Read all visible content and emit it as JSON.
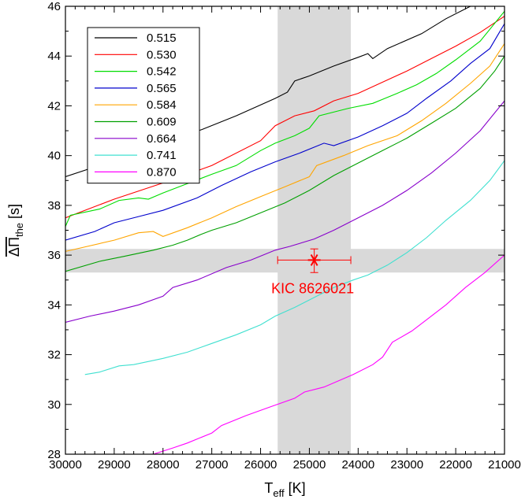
{
  "chart_data": {
    "type": "line",
    "xlabel": {
      "main": "T",
      "sub": "eff",
      "unit": " [K]"
    },
    "ylabel": {
      "main": "ΔΠ",
      "sub": "the",
      "unit": " [s]"
    },
    "xlim": [
      30000,
      21000
    ],
    "ylim": [
      28,
      46
    ],
    "x_reversed": true,
    "x_ticks": [
      30000,
      29000,
      28000,
      27000,
      26000,
      25000,
      24000,
      23000,
      22000,
      21000
    ],
    "y_ticks": [
      28,
      30,
      32,
      34,
      36,
      38,
      40,
      42,
      44,
      46
    ],
    "legend_position": "top-left",
    "bands": {
      "vertical": {
        "x_range": [
          25650,
          24150
        ],
        "color": "#d9d9d9"
      },
      "horizontal": {
        "y_range": [
          35.3,
          36.25
        ],
        "color": "#d9d9d9"
      }
    },
    "annotation": {
      "label": "KIC 8626021",
      "x": 24900,
      "y": 35.8,
      "x_err": [
        25650,
        24150
      ],
      "y_err": [
        35.3,
        36.25
      ],
      "color": "#ff0000"
    },
    "series": [
      {
        "name": "0.515",
        "color": "#000000",
        "points": [
          [
            30000,
            39.15
          ],
          [
            29000,
            39.8
          ],
          [
            28000,
            40.5
          ],
          [
            27200,
            41.05
          ],
          [
            26500,
            41.6
          ],
          [
            25700,
            42.3
          ],
          [
            25450,
            42.55
          ],
          [
            25300,
            43.0
          ],
          [
            25000,
            43.2
          ],
          [
            24500,
            43.6
          ],
          [
            24000,
            43.95
          ],
          [
            23800,
            44.1
          ],
          [
            23700,
            43.9
          ],
          [
            23400,
            44.3
          ],
          [
            22700,
            44.9
          ],
          [
            22200,
            45.5
          ],
          [
            21700,
            46.0
          ]
        ]
      },
      {
        "name": "0.530",
        "color": "#ff0000",
        "points": [
          [
            30000,
            37.5
          ],
          [
            29000,
            38.25
          ],
          [
            28000,
            38.9
          ],
          [
            27000,
            39.6
          ],
          [
            26000,
            40.6
          ],
          [
            25700,
            41.2
          ],
          [
            25300,
            41.6
          ],
          [
            24900,
            41.8
          ],
          [
            24500,
            42.2
          ],
          [
            24000,
            42.5
          ],
          [
            23500,
            42.95
          ],
          [
            23000,
            43.4
          ],
          [
            22500,
            43.9
          ],
          [
            22000,
            44.4
          ],
          [
            21500,
            44.95
          ],
          [
            21000,
            45.6
          ]
        ]
      },
      {
        "name": "0.542",
        "color": "#00dd00",
        "points": [
          [
            30000,
            37.15
          ],
          [
            29900,
            37.6
          ],
          [
            29300,
            37.85
          ],
          [
            28900,
            38.2
          ],
          [
            28500,
            38.3
          ],
          [
            28300,
            38.25
          ],
          [
            28000,
            38.5
          ],
          [
            27600,
            38.8
          ],
          [
            27000,
            39.25
          ],
          [
            26500,
            39.6
          ],
          [
            26000,
            40.2
          ],
          [
            25700,
            40.5
          ],
          [
            25300,
            40.8
          ],
          [
            25000,
            41.1
          ],
          [
            24800,
            41.6
          ],
          [
            24200,
            41.9
          ],
          [
            23700,
            42.1
          ],
          [
            23200,
            42.5
          ],
          [
            22800,
            42.85
          ],
          [
            22400,
            43.3
          ],
          [
            22000,
            43.85
          ],
          [
            21500,
            44.6
          ],
          [
            21000,
            45.8
          ]
        ]
      },
      {
        "name": "0.565",
        "color": "#0000cc",
        "points": [
          [
            30000,
            36.6
          ],
          [
            29400,
            36.95
          ],
          [
            29000,
            37.3
          ],
          [
            28500,
            37.55
          ],
          [
            28000,
            37.8
          ],
          [
            27300,
            38.3
          ],
          [
            26800,
            38.8
          ],
          [
            26200,
            39.35
          ],
          [
            25700,
            39.75
          ],
          [
            25200,
            40.1
          ],
          [
            24700,
            40.5
          ],
          [
            24500,
            40.4
          ],
          [
            24000,
            40.75
          ],
          [
            23500,
            41.2
          ],
          [
            23000,
            41.7
          ],
          [
            22600,
            42.3
          ],
          [
            22100,
            43.0
          ],
          [
            21700,
            43.7
          ],
          [
            21300,
            44.3
          ],
          [
            21000,
            45.3
          ]
        ]
      },
      {
        "name": "0.584",
        "color": "#ffa500",
        "points": [
          [
            30000,
            36.15
          ],
          [
            29000,
            36.6
          ],
          [
            28500,
            36.9
          ],
          [
            28200,
            36.95
          ],
          [
            28000,
            36.75
          ],
          [
            27500,
            37.1
          ],
          [
            27000,
            37.5
          ],
          [
            26500,
            37.95
          ],
          [
            26000,
            38.35
          ],
          [
            25500,
            38.75
          ],
          [
            25000,
            39.15
          ],
          [
            24850,
            39.6
          ],
          [
            24300,
            40.0
          ],
          [
            23800,
            40.4
          ],
          [
            23200,
            40.8
          ],
          [
            22700,
            41.4
          ],
          [
            22200,
            42.1
          ],
          [
            21700,
            42.9
          ],
          [
            21300,
            43.6
          ],
          [
            21000,
            44.5
          ]
        ]
      },
      {
        "name": "0.609",
        "color": "#00a000",
        "points": [
          [
            30000,
            35.35
          ],
          [
            29300,
            35.75
          ],
          [
            28800,
            35.95
          ],
          [
            28200,
            36.2
          ],
          [
            27800,
            36.4
          ],
          [
            27500,
            36.6
          ],
          [
            27200,
            36.85
          ],
          [
            27000,
            37.0
          ],
          [
            26500,
            37.3
          ],
          [
            26000,
            37.7
          ],
          [
            25500,
            38.1
          ],
          [
            25000,
            38.6
          ],
          [
            24500,
            39.2
          ],
          [
            24000,
            39.7
          ],
          [
            23500,
            40.2
          ],
          [
            23000,
            40.7
          ],
          [
            22500,
            41.3
          ],
          [
            22000,
            41.9
          ],
          [
            21500,
            42.7
          ],
          [
            21200,
            43.4
          ],
          [
            21000,
            44.0
          ]
        ]
      },
      {
        "name": "0.664",
        "color": "#8800cc",
        "points": [
          [
            30000,
            33.3
          ],
          [
            29500,
            33.55
          ],
          [
            29000,
            33.75
          ],
          [
            28500,
            34.0
          ],
          [
            28000,
            34.35
          ],
          [
            27800,
            34.7
          ],
          [
            27300,
            35.0
          ],
          [
            26700,
            35.5
          ],
          [
            26200,
            35.8
          ],
          [
            25700,
            36.2
          ],
          [
            25400,
            36.35
          ],
          [
            24900,
            36.65
          ],
          [
            24500,
            37.0
          ],
          [
            24000,
            37.5
          ],
          [
            23500,
            38.0
          ],
          [
            23000,
            38.6
          ],
          [
            22500,
            39.3
          ],
          [
            22000,
            40.1
          ],
          [
            21500,
            41.0
          ],
          [
            21000,
            42.2
          ]
        ]
      },
      {
        "name": "0.741",
        "color": "#40e0d0",
        "points": [
          [
            29600,
            31.2
          ],
          [
            29300,
            31.3
          ],
          [
            28900,
            31.55
          ],
          [
            28600,
            31.6
          ],
          [
            28000,
            31.85
          ],
          [
            27500,
            32.1
          ],
          [
            27000,
            32.45
          ],
          [
            26500,
            32.8
          ],
          [
            26000,
            33.2
          ],
          [
            25700,
            33.55
          ],
          [
            25300,
            33.9
          ],
          [
            24900,
            34.3
          ],
          [
            24500,
            34.7
          ],
          [
            24100,
            35.0
          ],
          [
            23800,
            35.2
          ],
          [
            23400,
            35.6
          ],
          [
            23000,
            36.1
          ],
          [
            22600,
            36.7
          ],
          [
            22200,
            37.4
          ],
          [
            21700,
            38.2
          ],
          [
            21300,
            39.0
          ],
          [
            21000,
            39.8
          ]
        ]
      },
      {
        "name": "0.870",
        "color": "#ff00ff",
        "points": [
          [
            28200,
            28.0
          ],
          [
            27800,
            28.25
          ],
          [
            27500,
            28.45
          ],
          [
            27000,
            28.85
          ],
          [
            26800,
            29.15
          ],
          [
            26300,
            29.55
          ],
          [
            25800,
            29.9
          ],
          [
            25300,
            30.25
          ],
          [
            25100,
            30.5
          ],
          [
            24700,
            30.7
          ],
          [
            24100,
            31.2
          ],
          [
            23700,
            31.6
          ],
          [
            23500,
            31.9
          ],
          [
            23300,
            32.5
          ],
          [
            22900,
            32.95
          ],
          [
            22600,
            33.4
          ],
          [
            22200,
            34.0
          ],
          [
            21800,
            34.7
          ],
          [
            21400,
            35.3
          ],
          [
            21000,
            36.0
          ]
        ]
      }
    ]
  }
}
